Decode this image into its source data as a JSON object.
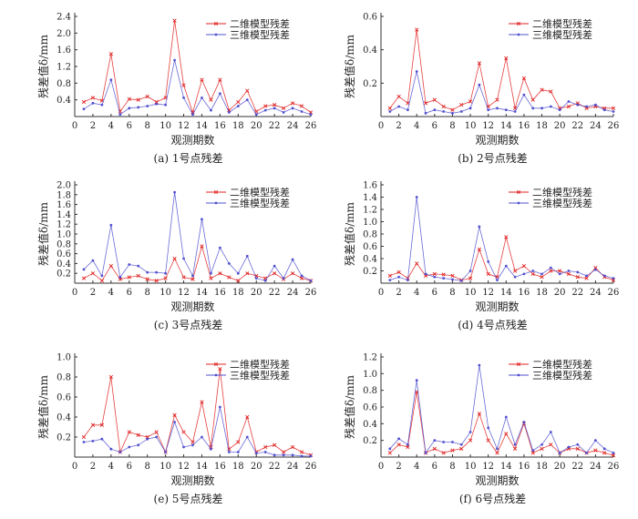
{
  "figure": {
    "panels": [
      {
        "caption": "(a) 1号点残差"
      },
      {
        "caption": "(b) 2号点残差"
      },
      {
        "caption": "(c) 3号点残差"
      },
      {
        "caption": "(d) 4号点残差"
      },
      {
        "caption": "(e) 5号点残差"
      },
      {
        "caption": "(f) 6号点残差"
      }
    ]
  },
  "chart_data": [
    {
      "type": "line",
      "caption": "(a) 1号点残差",
      "xlabel": "观测期数",
      "ylabel": "残差值δ/mm",
      "x": [
        1,
        2,
        3,
        4,
        5,
        6,
        7,
        8,
        9,
        10,
        11,
        12,
        13,
        14,
        15,
        16,
        17,
        18,
        19,
        20,
        21,
        22,
        23,
        24,
        25,
        26
      ],
      "xticks": [
        0,
        2,
        4,
        6,
        8,
        10,
        12,
        14,
        16,
        18,
        20,
        22,
        24,
        26
      ],
      "yticks": [
        0.4,
        0.8,
        1.2,
        1.6,
        2.0,
        2.4
      ],
      "xlim": [
        0,
        26
      ],
      "ylim": [
        0,
        2.4
      ],
      "legend_position": "top-right",
      "series": [
        {
          "name": "二维模型残差",
          "color": "#e02020",
          "marker": "x",
          "values": [
            0.35,
            0.45,
            0.38,
            1.5,
            0.12,
            0.42,
            0.4,
            0.48,
            0.35,
            0.45,
            2.3,
            0.75,
            0.1,
            0.88,
            0.4,
            0.88,
            0.15,
            0.35,
            0.62,
            0.12,
            0.25,
            0.28,
            0.2,
            0.32,
            0.25,
            0.1
          ]
        },
        {
          "name": "三维模型残差",
          "color": "#5050d0",
          "marker": "dot",
          "values": [
            0.18,
            0.32,
            0.28,
            0.88,
            0.05,
            0.2,
            0.22,
            0.25,
            0.3,
            0.28,
            1.35,
            0.45,
            0.05,
            0.45,
            0.15,
            0.55,
            0.1,
            0.25,
            0.4,
            0.05,
            0.15,
            0.2,
            0.1,
            0.2,
            0.12,
            0.05
          ]
        }
      ]
    },
    {
      "type": "line",
      "caption": "(b) 2号点残差",
      "xlabel": "观测期数",
      "ylabel": "残差值δ/mm",
      "x": [
        1,
        2,
        3,
        4,
        5,
        6,
        7,
        8,
        9,
        10,
        11,
        12,
        13,
        14,
        15,
        16,
        17,
        18,
        19,
        20,
        21,
        22,
        23,
        24,
        25,
        26
      ],
      "xticks": [
        0,
        2,
        4,
        6,
        8,
        10,
        12,
        14,
        16,
        18,
        20,
        22,
        24,
        26
      ],
      "yticks": [
        0.2,
        0.4,
        0.6
      ],
      "xlim": [
        0,
        26
      ],
      "ylim": [
        0,
        0.6
      ],
      "legend_position": "top-right",
      "series": [
        {
          "name": "二维模型残差",
          "color": "#e02020",
          "marker": "x",
          "values": [
            0.05,
            0.12,
            0.08,
            0.52,
            0.08,
            0.1,
            0.06,
            0.04,
            0.07,
            0.09,
            0.32,
            0.06,
            0.1,
            0.35,
            0.05,
            0.23,
            0.1,
            0.16,
            0.15,
            0.05,
            0.06,
            0.08,
            0.05,
            0.06,
            0.05,
            0.05
          ]
        },
        {
          "name": "三维模型残差",
          "color": "#5050d0",
          "marker": "dot",
          "values": [
            0.03,
            0.06,
            0.04,
            0.27,
            0.02,
            0.04,
            0.03,
            0.02,
            0.03,
            0.05,
            0.19,
            0.04,
            0.05,
            0.04,
            0.03,
            0.13,
            0.05,
            0.05,
            0.06,
            0.04,
            0.09,
            0.07,
            0.06,
            0.07,
            0.04,
            0.03
          ]
        }
      ]
    },
    {
      "type": "line",
      "caption": "(c) 3号点残差",
      "xlabel": "观测期数",
      "ylabel": "残差值δ/mm",
      "x": [
        1,
        2,
        3,
        4,
        5,
        6,
        7,
        8,
        9,
        10,
        11,
        12,
        13,
        14,
        15,
        16,
        17,
        18,
        19,
        20,
        21,
        22,
        23,
        24,
        25,
        26
      ],
      "xticks": [
        0,
        2,
        4,
        6,
        8,
        10,
        12,
        14,
        16,
        18,
        20,
        22,
        24,
        26
      ],
      "yticks": [
        0.2,
        0.4,
        0.6,
        0.8,
        1.0,
        1.2,
        1.4,
        1.6,
        1.8,
        2.0
      ],
      "xlim": [
        0,
        26
      ],
      "ylim": [
        0,
        2.0
      ],
      "legend_position": "top-right",
      "series": [
        {
          "name": "二维模型残差",
          "color": "#e02020",
          "marker": "x",
          "values": [
            0.1,
            0.2,
            0.05,
            0.35,
            0.08,
            0.12,
            0.15,
            0.08,
            0.05,
            0.1,
            0.5,
            0.12,
            0.08,
            0.75,
            0.1,
            0.2,
            0.12,
            0.05,
            0.2,
            0.15,
            0.1,
            0.2,
            0.08,
            0.2,
            0.1,
            0.05
          ]
        },
        {
          "name": "三维模型残差",
          "color": "#5050d0",
          "marker": "dot",
          "values": [
            0.28,
            0.46,
            0.15,
            1.18,
            0.12,
            0.38,
            0.35,
            0.22,
            0.22,
            0.2,
            1.85,
            0.5,
            0.15,
            1.3,
            0.2,
            0.72,
            0.4,
            0.2,
            0.55,
            0.1,
            0.05,
            0.35,
            0.1,
            0.48,
            0.15,
            0.05
          ]
        }
      ]
    },
    {
      "type": "line",
      "caption": "(d) 4号点残差",
      "xlabel": "观测期数",
      "ylabel": "残差值δ/mm",
      "x": [
        1,
        2,
        3,
        4,
        5,
        6,
        7,
        8,
        9,
        10,
        11,
        12,
        13,
        14,
        15,
        16,
        17,
        18,
        19,
        20,
        21,
        22,
        23,
        24,
        25,
        26
      ],
      "xticks": [
        0,
        2,
        4,
        6,
        8,
        10,
        12,
        14,
        16,
        18,
        20,
        22,
        24,
        26
      ],
      "yticks": [
        0.2,
        0.4,
        0.6,
        0.8,
        1.0,
        1.2,
        1.4,
        1.6
      ],
      "xlim": [
        0,
        26
      ],
      "ylim": [
        0,
        1.6
      ],
      "legend_position": "top-right",
      "series": [
        {
          "name": "二维模型残差",
          "color": "#e02020",
          "marker": "x",
          "values": [
            0.12,
            0.18,
            0.08,
            0.32,
            0.12,
            0.15,
            0.14,
            0.12,
            0.05,
            0.08,
            0.55,
            0.15,
            0.1,
            0.75,
            0.2,
            0.28,
            0.15,
            0.1,
            0.2,
            0.2,
            0.15,
            0.1,
            0.08,
            0.25,
            0.1,
            0.05
          ]
        },
        {
          "name": "三维模型残差",
          "color": "#5050d0",
          "marker": "dot",
          "values": [
            0.05,
            0.1,
            0.05,
            1.4,
            0.15,
            0.1,
            0.08,
            0.06,
            0.04,
            0.2,
            0.92,
            0.35,
            0.05,
            0.28,
            0.1,
            0.15,
            0.2,
            0.15,
            0.25,
            0.15,
            0.2,
            0.18,
            0.12,
            0.22,
            0.12,
            0.08
          ]
        }
      ]
    },
    {
      "type": "line",
      "caption": "(e) 5号点残差",
      "xlabel": "观测期数",
      "ylabel": "残差值δ/mm",
      "x": [
        1,
        2,
        3,
        4,
        5,
        6,
        7,
        8,
        9,
        10,
        11,
        12,
        13,
        14,
        15,
        16,
        17,
        18,
        19,
        20,
        21,
        22,
        23,
        24,
        25,
        26
      ],
      "xticks": [
        0,
        2,
        4,
        6,
        8,
        10,
        12,
        14,
        16,
        18,
        20,
        22,
        24,
        26
      ],
      "yticks": [
        0.2,
        0.4,
        0.6,
        0.8,
        1.0
      ],
      "xlim": [
        0,
        26
      ],
      "ylim": [
        0,
        1.0
      ],
      "legend_position": "top-right",
      "series": [
        {
          "name": "二维模型残差",
          "color": "#e02020",
          "marker": "x",
          "values": [
            0.2,
            0.32,
            0.32,
            0.8,
            0.05,
            0.25,
            0.22,
            0.2,
            0.25,
            0.05,
            0.42,
            0.25,
            0.15,
            0.55,
            0.1,
            0.88,
            0.08,
            0.15,
            0.4,
            0.05,
            0.1,
            0.12,
            0.05,
            0.1,
            0.05,
            0.02
          ]
        },
        {
          "name": "三维模型残差",
          "color": "#5050d0",
          "marker": "dot",
          "values": [
            0.15,
            0.16,
            0.18,
            0.08,
            0.05,
            0.1,
            0.12,
            0.18,
            0.2,
            0.05,
            0.35,
            0.1,
            0.12,
            0.2,
            0.08,
            0.5,
            0.05,
            0.05,
            0.2,
            0.04,
            0.05,
            0.02,
            0.02,
            0.02,
            0.01,
            0.01
          ]
        }
      ]
    },
    {
      "type": "line",
      "caption": "(f) 6号点残差",
      "xlabel": "观测期数",
      "ylabel": "残差值δ/mm",
      "x": [
        1,
        2,
        3,
        4,
        5,
        6,
        7,
        8,
        9,
        10,
        11,
        12,
        13,
        14,
        15,
        16,
        17,
        18,
        19,
        20,
        21,
        22,
        23,
        24,
        25,
        26
      ],
      "xticks": [
        0,
        2,
        4,
        6,
        8,
        10,
        12,
        14,
        16,
        18,
        20,
        22,
        24,
        26
      ],
      "yticks": [
        0.2,
        0.4,
        0.6,
        0.8,
        1.0,
        1.2
      ],
      "xlim": [
        0,
        26
      ],
      "ylim": [
        0,
        1.2
      ],
      "legend_position": "top-right",
      "series": [
        {
          "name": "二维模型残差",
          "color": "#e02020",
          "marker": "x",
          "values": [
            0.05,
            0.15,
            0.12,
            0.78,
            0.05,
            0.1,
            0.05,
            0.08,
            0.1,
            0.2,
            0.52,
            0.2,
            0.05,
            0.28,
            0.1,
            0.4,
            0.05,
            0.1,
            0.15,
            0.05,
            0.1,
            0.1,
            0.05,
            0.08,
            0.05,
            0.02
          ]
        },
        {
          "name": "三维模型残差",
          "color": "#5050d0",
          "marker": "dot",
          "values": [
            0.1,
            0.22,
            0.15,
            0.92,
            0.05,
            0.2,
            0.18,
            0.18,
            0.15,
            0.3,
            1.1,
            0.35,
            0.1,
            0.48,
            0.15,
            0.42,
            0.08,
            0.15,
            0.3,
            0.05,
            0.12,
            0.15,
            0.05,
            0.2,
            0.1,
            0.05
          ]
        }
      ]
    }
  ]
}
